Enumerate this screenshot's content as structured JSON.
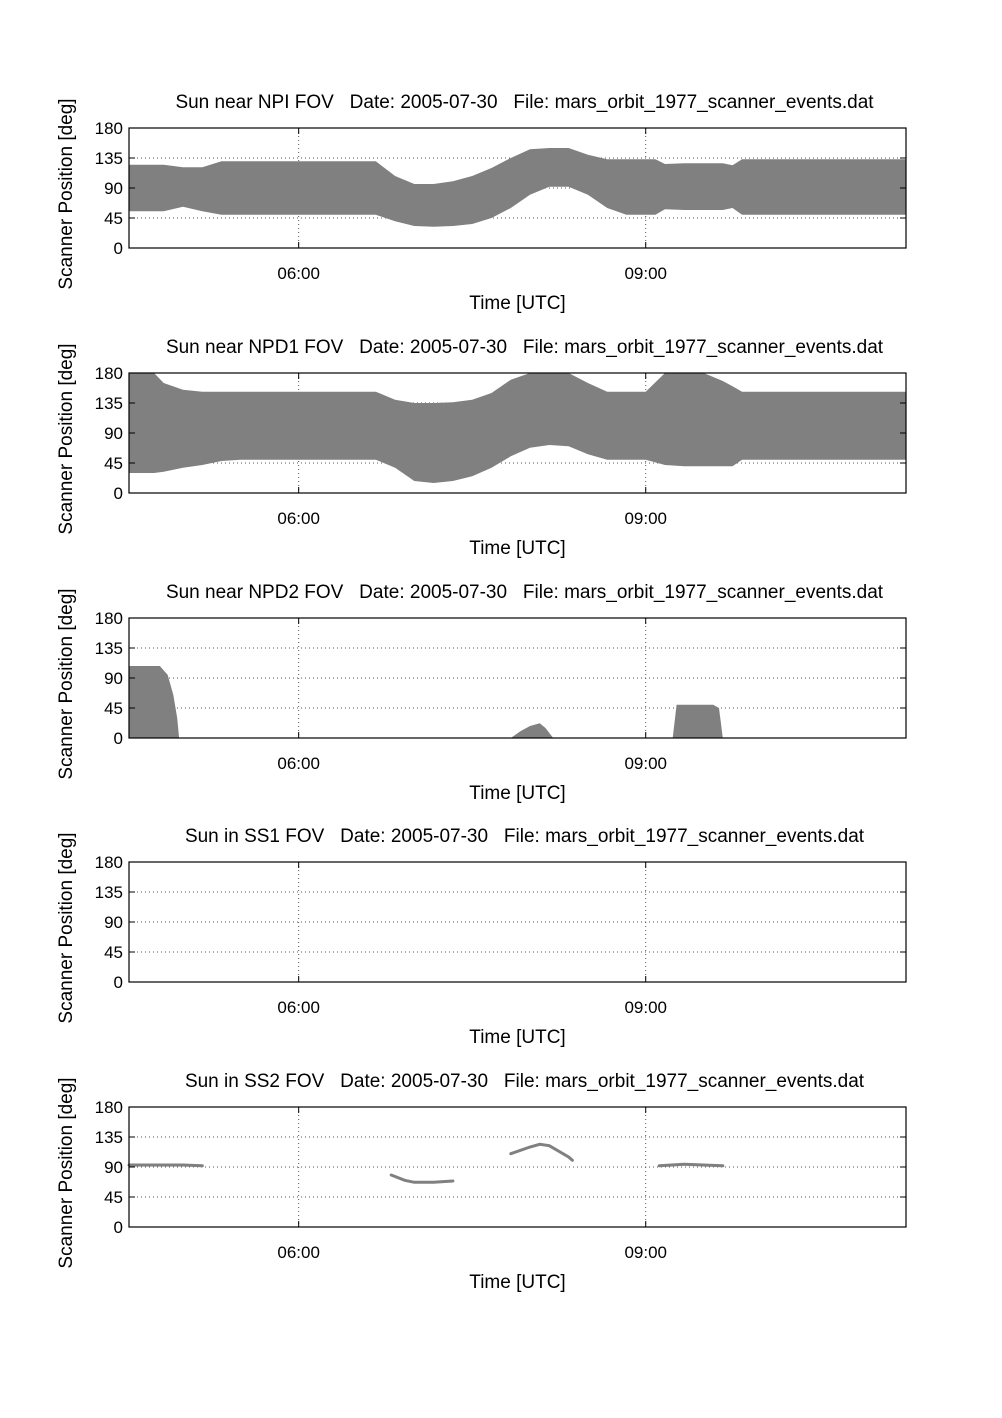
{
  "chart_data": [
    {
      "type": "area",
      "title": "Sun near NPI FOV   Date: 2005-07-30   File: mars_orbit_1977_scanner_events.dat",
      "xlabel": "Time [UTC]",
      "ylabel": "Scanner Position [deg]",
      "xlim": [
        "04:32",
        "11:15"
      ],
      "ylim": [
        0,
        180
      ],
      "yticks": [
        0,
        45,
        90,
        135,
        180
      ],
      "xticks": [
        "06:00",
        "09:00"
      ],
      "grid": true,
      "bands": [
        {
          "x": [
            "04:32",
            "04:40",
            "04:50",
            "05:00",
            "05:10",
            "05:20",
            "05:30",
            "05:40",
            "05:50",
            "06:00",
            "06:20",
            "06:40",
            "06:50",
            "07:00",
            "07:10",
            "07:20",
            "07:30",
            "07:40",
            "07:50",
            "08:00",
            "08:10",
            "08:20",
            "08:30",
            "08:40",
            "08:50",
            "09:00",
            "09:05",
            "09:10",
            "09:20",
            "09:30",
            "09:40",
            "09:45",
            "09:50",
            "10:00",
            "10:30",
            "11:15"
          ],
          "lower": [
            55,
            55,
            55,
            62,
            55,
            50,
            50,
            50,
            50,
            50,
            50,
            50,
            40,
            33,
            32,
            33,
            36,
            45,
            60,
            80,
            92,
            92,
            80,
            60,
            50,
            50,
            50,
            58,
            57,
            57,
            57,
            60,
            50,
            50,
            50,
            50
          ],
          "upper": [
            125,
            125,
            125,
            121,
            121,
            130,
            130,
            130,
            130,
            130,
            130,
            130,
            108,
            96,
            96,
            100,
            108,
            120,
            135,
            148,
            150,
            150,
            140,
            133,
            133,
            133,
            133,
            126,
            127,
            127,
            127,
            124,
            133,
            133,
            133,
            133
          ]
        }
      ]
    },
    {
      "type": "area",
      "title": "Sun near NPD1 FOV   Date: 2005-07-30   File: mars_orbit_1977_scanner_events.dat",
      "xlabel": "Time [UTC]",
      "ylabel": "Scanner Position [deg]",
      "xlim": [
        "04:32",
        "11:15"
      ],
      "ylim": [
        0,
        180
      ],
      "yticks": [
        0,
        45,
        90,
        135,
        180
      ],
      "xticks": [
        "06:00",
        "09:00"
      ],
      "grid": true,
      "bands": [
        {
          "x": [
            "04:32",
            "04:45",
            "04:50",
            "05:00",
            "05:10",
            "05:20",
            "05:30",
            "05:40",
            "05:50",
            "06:00",
            "06:20",
            "06:40",
            "06:50",
            "07:00",
            "07:10",
            "07:20",
            "07:30",
            "07:40",
            "07:50",
            "08:00",
            "08:10",
            "08:20",
            "08:30",
            "08:40",
            "08:50",
            "09:00",
            "09:10",
            "09:20",
            "09:30",
            "09:40",
            "09:45",
            "09:50",
            "10:00",
            "10:30",
            "11:15"
          ],
          "lower": [
            30,
            30,
            32,
            38,
            42,
            48,
            50,
            50,
            50,
            50,
            50,
            50,
            38,
            18,
            15,
            18,
            25,
            38,
            55,
            68,
            72,
            70,
            58,
            50,
            50,
            50,
            42,
            40,
            40,
            40,
            40,
            50,
            50,
            50,
            50
          ],
          "upper": [
            180,
            180,
            165,
            155,
            152,
            152,
            152,
            152,
            152,
            152,
            152,
            152,
            140,
            135,
            135,
            136,
            140,
            150,
            170,
            180,
            180,
            180,
            165,
            152,
            152,
            152,
            180,
            180,
            180,
            168,
            160,
            152,
            152,
            152,
            152
          ]
        }
      ]
    },
    {
      "type": "area",
      "title": "Sun near NPD2 FOV   Date: 2005-07-30   File: mars_orbit_1977_scanner_events.dat",
      "xlabel": "Time [UTC]",
      "ylabel": "Scanner Position [deg]",
      "xlim": [
        "04:32",
        "11:15"
      ],
      "ylim": [
        0,
        180
      ],
      "yticks": [
        0,
        45,
        90,
        135,
        180
      ],
      "xticks": [
        "06:00",
        "09:00"
      ],
      "grid": true,
      "bands": [
        {
          "x": [
            "04:32",
            "04:48",
            "04:52",
            "04:55",
            "04:57",
            "04:58"
          ],
          "lower": [
            0,
            0,
            0,
            0,
            0,
            0
          ],
          "upper": [
            108,
            108,
            95,
            65,
            30,
            0
          ]
        },
        {
          "x": [
            "07:50",
            "07:55",
            "08:00",
            "08:05",
            "08:08",
            "08:12"
          ],
          "lower": [
            0,
            0,
            0,
            0,
            0,
            0
          ],
          "upper": [
            0,
            10,
            18,
            22,
            15,
            0
          ]
        },
        {
          "x": [
            "09:14",
            "09:16",
            "09:35",
            "09:38",
            "09:40"
          ],
          "lower": [
            0,
            0,
            0,
            0,
            0
          ],
          "upper": [
            0,
            50,
            50,
            45,
            0
          ]
        }
      ]
    },
    {
      "type": "line",
      "title": "Sun in SS1 FOV   Date: 2005-07-30   File: mars_orbit_1977_scanner_events.dat",
      "xlabel": "Time [UTC]",
      "ylabel": "Scanner Position [deg]",
      "xlim": [
        "04:32",
        "11:15"
      ],
      "ylim": [
        0,
        180
      ],
      "yticks": [
        0,
        45,
        90,
        135,
        180
      ],
      "xticks": [
        "06:00",
        "09:00"
      ],
      "grid": true,
      "series": []
    },
    {
      "type": "line",
      "title": "Sun in SS2 FOV   Date: 2005-07-30   File: mars_orbit_1977_scanner_events.dat",
      "xlabel": "Time [UTC]",
      "ylabel": "Scanner Position [deg]",
      "xlim": [
        "04:32",
        "11:15"
      ],
      "ylim": [
        0,
        180
      ],
      "yticks": [
        0,
        45,
        90,
        135,
        180
      ],
      "xticks": [
        "06:00",
        "09:00"
      ],
      "grid": true,
      "series": [
        {
          "x": [
            "04:32",
            "05:00",
            "05:10"
          ],
          "y": [
            93,
            93,
            92
          ]
        },
        {
          "x": [
            "06:48",
            "06:55",
            "07:00",
            "07:10",
            "07:20"
          ],
          "y": [
            78,
            70,
            67,
            67,
            69
          ]
        },
        {
          "x": [
            "07:50",
            "08:00",
            "08:05",
            "08:10",
            "08:20",
            "08:22"
          ],
          "y": [
            110,
            120,
            124,
            122,
            105,
            100
          ]
        },
        {
          "x": [
            "09:07",
            "09:20",
            "09:40"
          ],
          "y": [
            92,
            94,
            92
          ]
        }
      ]
    }
  ]
}
